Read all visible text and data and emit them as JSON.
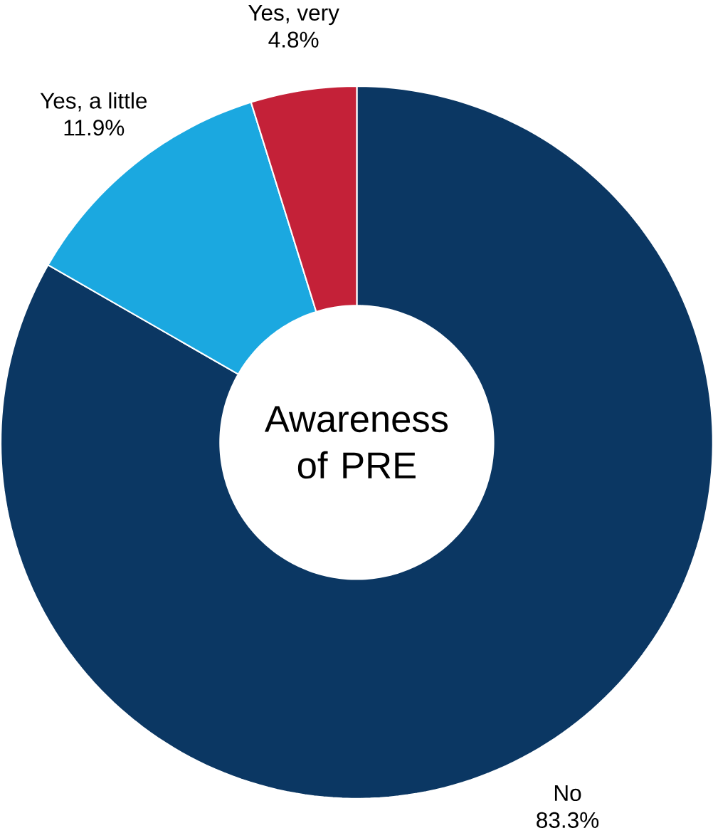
{
  "chart_data": {
    "type": "donut",
    "title": "Awareness of PRE",
    "categories": [
      "No",
      "Yes, a little",
      "Yes, very"
    ],
    "values": [
      83.3,
      11.9,
      4.8
    ],
    "value_labels": [
      "83.3%",
      "11.9%",
      "4.8%"
    ],
    "colors": [
      "#0b3763",
      "#1ba8e0",
      "#c42138"
    ]
  }
}
